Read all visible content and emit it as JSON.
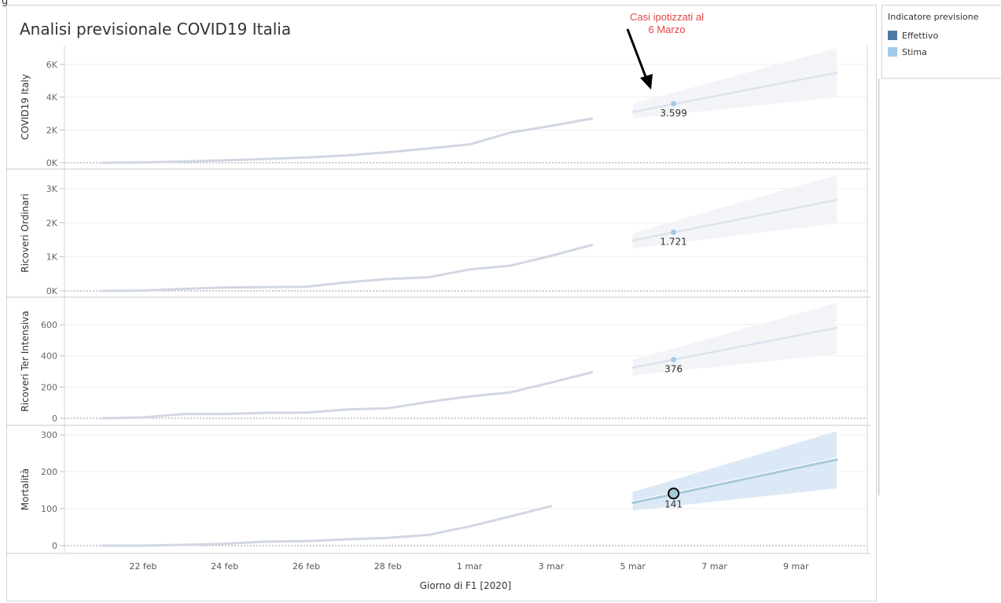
{
  "page": {
    "corner_glyph": "g"
  },
  "dashboard": {
    "title": "Analisi previsionale COVID19 Italia"
  },
  "legend": {
    "title": "Indicatore previsione",
    "items": [
      {
        "label": "Effettivo",
        "color": "#4e79a7"
      },
      {
        "label": "Stima",
        "color": "#a0cbe8"
      }
    ]
  },
  "chart_data": {
    "type": "line",
    "xlabel": "Giorno di F1 [2020]",
    "x": [
      "21 feb",
      "22 feb",
      "23 feb",
      "24 feb",
      "25 feb",
      "26 feb",
      "27 feb",
      "28 feb",
      "29 feb",
      "1 mar",
      "2 mar",
      "3 mar",
      "4 mar",
      "5 mar",
      "6 mar",
      "7 mar",
      "8 mar",
      "9 mar",
      "10 mar"
    ],
    "x_tick_labels": [
      "22 feb",
      "24 feb",
      "26 feb",
      "28 feb",
      "1 mar",
      "3 mar",
      "5 mar",
      "7 mar",
      "9 mar"
    ],
    "grid": true,
    "colors": {
      "actual_line": "#d1d7e3",
      "forecast_line": "#dde2ee",
      "forecast_band": "#f3f4f8",
      "estimate_dot": "#a0cbe8",
      "highlight_line": "#a5c9da",
      "highlight_band": "#dbe9f6",
      "annotation": "#e04646"
    },
    "annotation": {
      "text_line1": "Casi ipotizzati al",
      "text_line2": "6 Marzo",
      "target_date": "6 mar"
    },
    "panels": [
      {
        "ylabel": "COVID19 Italy",
        "ylim": [
          0,
          7000
        ],
        "yticks": [
          0,
          2000,
          4000,
          6000
        ],
        "ytick_labels": [
          "0K",
          "2K",
          "4K",
          "6K"
        ],
        "actual": [
          0,
          20,
          80,
          150,
          230,
          320,
          450,
          640,
          870,
          1120,
          1840,
          2250,
          2700
        ],
        "forecast": {
          "dates": [
            "5 mar",
            "10 mar"
          ],
          "values": [
            3100,
            5500
          ],
          "lower": [
            2700,
            4000
          ],
          "upper": [
            3600,
            7000
          ]
        },
        "estimate": {
          "date": "6 mar",
          "value": 3599,
          "label": "3.599"
        },
        "highlight": false
      },
      {
        "ylabel": "Ricoveri Ordinari",
        "ylim": [
          0,
          3500
        ],
        "yticks": [
          0,
          1000,
          2000,
          3000
        ],
        "ytick_labels": [
          "0K",
          "1K",
          "2K",
          "3K"
        ],
        "actual": [
          0,
          10,
          60,
          100,
          110,
          120,
          250,
          350,
          400,
          630,
          740,
          1030,
          1350
        ],
        "forecast": {
          "dates": [
            "5 mar",
            "10 mar"
          ],
          "values": [
            1480,
            2670
          ],
          "lower": [
            1250,
            1980
          ],
          "upper": [
            1700,
            3400
          ]
        },
        "estimate": {
          "date": "6 mar",
          "value": 1721,
          "label": "1.721"
        },
        "highlight": false
      },
      {
        "ylabel": "Ricoveri Ter Intensiva",
        "ylim": [
          0,
          720
        ],
        "yticks": [
          0,
          200,
          400,
          600
        ],
        "ytick_labels": [
          "0",
          "200",
          "400",
          "600"
        ],
        "actual": [
          0,
          5,
          27,
          27,
          35,
          36,
          56,
          64,
          105,
          140,
          166,
          229,
          295
        ],
        "forecast": {
          "dates": [
            "5 mar",
            "10 mar"
          ],
          "values": [
            325,
            580
          ],
          "lower": [
            275,
            410
          ],
          "upper": [
            375,
            740
          ]
        },
        "estimate": {
          "date": "6 mar",
          "value": 376,
          "label": "376"
        },
        "highlight": false
      },
      {
        "ylabel": "Mortalità",
        "ylim": [
          0,
          318
        ],
        "yticks": [
          0,
          100,
          200,
          300
        ],
        "ytick_labels": [
          "0",
          "100",
          "200",
          "300"
        ],
        "actual": [
          0,
          0,
          2,
          5,
          11,
          12,
          17,
          21,
          29,
          52,
          79,
          107
        ],
        "forecast": {
          "dates": [
            "5 mar",
            "10 mar"
          ],
          "values": [
            116,
            233
          ],
          "lower": [
            95,
            155
          ],
          "upper": [
            145,
            310
          ]
        },
        "estimate": {
          "date": "6 mar",
          "value": 141,
          "label": "141"
        },
        "highlight": true
      }
    ]
  }
}
